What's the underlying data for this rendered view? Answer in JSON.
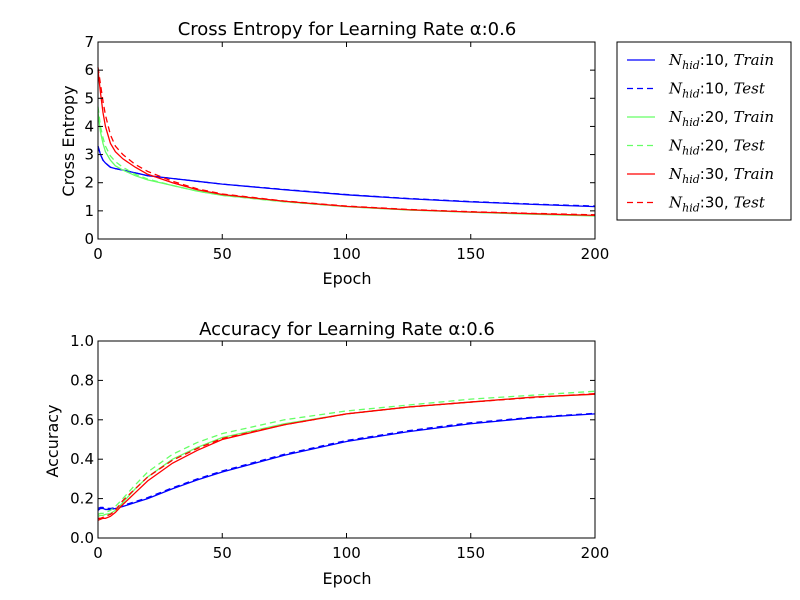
{
  "chart_data": [
    {
      "type": "line",
      "title": "Cross Entropy for Learning Rate α:0.6",
      "xlabel": "Epoch",
      "ylabel": "Cross Entropy",
      "xlim": [
        0,
        200
      ],
      "ylim": [
        0,
        7
      ],
      "xticks": [
        "0",
        "50",
        "100",
        "150",
        "200"
      ],
      "yticks": [
        "0",
        "1",
        "2",
        "3",
        "4",
        "5",
        "6",
        "7"
      ],
      "grid": false,
      "legend_placement": "outside-right",
      "x": [
        0,
        1,
        2,
        3,
        5,
        7,
        10,
        15,
        20,
        30,
        40,
        50,
        75,
        100,
        125,
        150,
        175,
        200
      ],
      "series": [
        {
          "name": "N_hid:10, Train",
          "color": "#0000ff",
          "dash": "solid",
          "values": [
            3.3,
            3.0,
            2.8,
            2.7,
            2.55,
            2.5,
            2.45,
            2.35,
            2.25,
            2.15,
            2.05,
            1.95,
            1.75,
            1.57,
            1.43,
            1.32,
            1.23,
            1.15
          ]
        },
        {
          "name": "N_hid:10, Test",
          "color": "#0000ff",
          "dash": "dashed",
          "values": [
            3.3,
            3.0,
            2.8,
            2.7,
            2.55,
            2.5,
            2.45,
            2.35,
            2.25,
            2.15,
            2.05,
            1.95,
            1.76,
            1.58,
            1.44,
            1.33,
            1.24,
            1.17
          ]
        },
        {
          "name": "N_hid:20, Train",
          "color": "#66ff66",
          "dash": "solid",
          "values": [
            4.5,
            3.8,
            3.4,
            3.1,
            2.8,
            2.6,
            2.45,
            2.25,
            2.1,
            1.9,
            1.7,
            1.55,
            1.33,
            1.15,
            1.03,
            0.95,
            0.88,
            0.82
          ]
        },
        {
          "name": "N_hid:20, Test",
          "color": "#66ff66",
          "dash": "dashed",
          "values": [
            4.7,
            4.0,
            3.6,
            3.3,
            2.95,
            2.75,
            2.55,
            2.3,
            2.13,
            1.9,
            1.7,
            1.55,
            1.32,
            1.15,
            1.03,
            0.95,
            0.89,
            0.83
          ]
        },
        {
          "name": "N_hid:30, Train",
          "color": "#ff0000",
          "dash": "solid",
          "values": [
            6.0,
            5.2,
            4.5,
            4.0,
            3.4,
            3.1,
            2.85,
            2.55,
            2.3,
            2.0,
            1.75,
            1.58,
            1.34,
            1.16,
            1.04,
            0.96,
            0.9,
            0.84
          ]
        },
        {
          "name": "N_hid:30, Test",
          "color": "#ff0000",
          "dash": "dashed",
          "values": [
            6.1,
            5.5,
            4.9,
            4.4,
            3.7,
            3.3,
            3.0,
            2.65,
            2.4,
            2.05,
            1.78,
            1.6,
            1.35,
            1.17,
            1.05,
            0.97,
            0.91,
            0.86
          ]
        }
      ]
    },
    {
      "type": "line",
      "title": "Accuracy for Learning Rate α:0.6",
      "xlabel": "Epoch",
      "ylabel": "Accuracy",
      "xlim": [
        0,
        200
      ],
      "ylim": [
        0,
        1.0
      ],
      "xticks": [
        "0",
        "50",
        "100",
        "150",
        "200"
      ],
      "yticks": [
        "0.0",
        "0.2",
        "0.4",
        "0.6",
        "0.8",
        "1.0"
      ],
      "grid": false,
      "x": [
        0,
        1,
        2,
        3,
        5,
        7,
        10,
        15,
        20,
        30,
        40,
        50,
        75,
        100,
        125,
        150,
        175,
        200
      ],
      "series": [
        {
          "name": "N_hid:10, Train",
          "color": "#0000ff",
          "dash": "solid",
          "values": [
            0.14,
            0.15,
            0.15,
            0.145,
            0.145,
            0.15,
            0.16,
            0.18,
            0.2,
            0.25,
            0.295,
            0.335,
            0.42,
            0.49,
            0.54,
            0.58,
            0.61,
            0.63
          ]
        },
        {
          "name": "N_hid:10, Test",
          "color": "#0000ff",
          "dash": "dashed",
          "values": [
            0.15,
            0.155,
            0.155,
            0.15,
            0.15,
            0.155,
            0.165,
            0.185,
            0.205,
            0.255,
            0.3,
            0.34,
            0.425,
            0.495,
            0.545,
            0.585,
            0.613,
            0.633
          ]
        },
        {
          "name": "N_hid:20, Train",
          "color": "#66ff66",
          "dash": "solid",
          "values": [
            0.11,
            0.115,
            0.115,
            0.12,
            0.125,
            0.14,
            0.18,
            0.25,
            0.31,
            0.4,
            0.46,
            0.51,
            0.58,
            0.63,
            0.665,
            0.69,
            0.715,
            0.73
          ]
        },
        {
          "name": "N_hid:20, Test",
          "color": "#66ff66",
          "dash": "dashed",
          "values": [
            0.12,
            0.125,
            0.125,
            0.13,
            0.14,
            0.16,
            0.2,
            0.27,
            0.335,
            0.425,
            0.485,
            0.53,
            0.6,
            0.645,
            0.675,
            0.705,
            0.725,
            0.745
          ]
        },
        {
          "name": "N_hid:30, Train",
          "color": "#ff0000",
          "dash": "solid",
          "values": [
            0.09,
            0.095,
            0.1,
            0.1,
            0.11,
            0.13,
            0.17,
            0.23,
            0.29,
            0.38,
            0.445,
            0.5,
            0.575,
            0.63,
            0.665,
            0.69,
            0.715,
            0.73
          ]
        },
        {
          "name": "N_hid:30, Test",
          "color": "#ff0000",
          "dash": "dashed",
          "values": [
            0.1,
            0.1,
            0.105,
            0.11,
            0.12,
            0.14,
            0.19,
            0.25,
            0.31,
            0.395,
            0.455,
            0.505,
            0.575,
            0.63,
            0.665,
            0.69,
            0.713,
            0.733
          ]
        }
      ]
    }
  ]
}
